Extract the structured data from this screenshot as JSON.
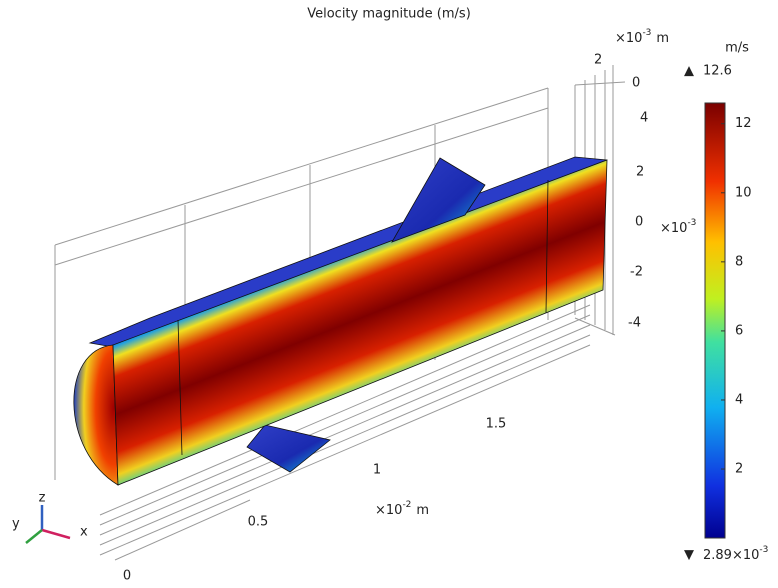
{
  "title": "Velocity magnitude (m/s)",
  "colorbar": {
    "unit": "m/s",
    "max": 12.6,
    "min": {
      "value": 0.00289,
      "mantissa": "2.89",
      "base": "×10",
      "exponent": "-3"
    },
    "ticks": [
      2,
      4,
      6,
      8,
      10,
      12
    ]
  },
  "axes": {
    "x": {
      "unit": {
        "base": "×10",
        "exponent": "-2",
        "unit": "m"
      },
      "ticks": [
        0,
        0.5,
        1,
        1.5
      ]
    },
    "y": {
      "unit": {
        "base": "×10",
        "exponent": "-3",
        "unit": "m"
      },
      "ticks": [
        2,
        0
      ]
    },
    "z": {
      "unit": {
        "base": "×10",
        "exponent": "-3"
      },
      "ticks": [
        4,
        2,
        0,
        -2,
        -4
      ]
    }
  },
  "triad": {
    "x": "x",
    "y": "y",
    "z": "z"
  }
}
